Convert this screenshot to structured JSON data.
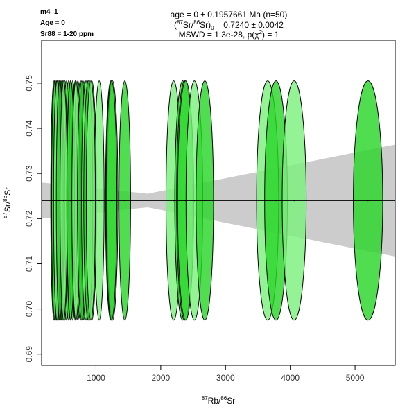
{
  "sample": {
    "name": "m4_1",
    "age_label": "Age = 0",
    "sr_label": "Sr88 = 1-20 ppm"
  },
  "chart_data": {
    "type": "scatter",
    "title_lines": [
      "age = 0 ± 0.1957661 Ma (n=50)",
      "(87Sr/86Sr)0 = 0.7240 ± 0.0042",
      "MSWD = 1.3e-28, p(χ2) = 1"
    ],
    "xlabel": "87Rb/86Sr",
    "ylabel": "87Sr/86Sr",
    "xlim": [
      160,
      5620
    ],
    "ylim": [
      0.6875,
      0.7595
    ],
    "xticks": [
      1000,
      2000,
      3000,
      4000,
      5000
    ],
    "yticks": [
      0.69,
      0.7,
      0.71,
      0.72,
      0.73,
      0.74,
      0.75
    ],
    "initial_ratio": 0.724,
    "y_uncertainty": 0.0265,
    "band": {
      "half_width_at_x": [
        [
          160,
          0.004
        ],
        [
          1800,
          0.0015
        ],
        [
          5620,
          0.0124
        ]
      ]
    },
    "points_x": [
      355,
      375,
      392,
      405,
      418,
      432,
      447,
      460,
      475,
      488,
      505,
      520,
      545,
      575,
      605,
      640,
      680,
      720,
      760,
      800,
      830,
      865,
      900,
      935,
      1050,
      1230,
      1255,
      1445,
      2200,
      2340,
      2370,
      2385,
      2520,
      2680,
      3650,
      3780,
      4060,
      5200,
      352,
      365,
      398,
      440,
      500,
      610,
      690,
      780,
      845,
      880,
      920,
      1240
    ],
    "colors": {
      "ellipse_fill_light": "#7df07d",
      "ellipse_fill_dark": "#2ad62a",
      "band": "#cccccc",
      "line": "#000000"
    }
  }
}
